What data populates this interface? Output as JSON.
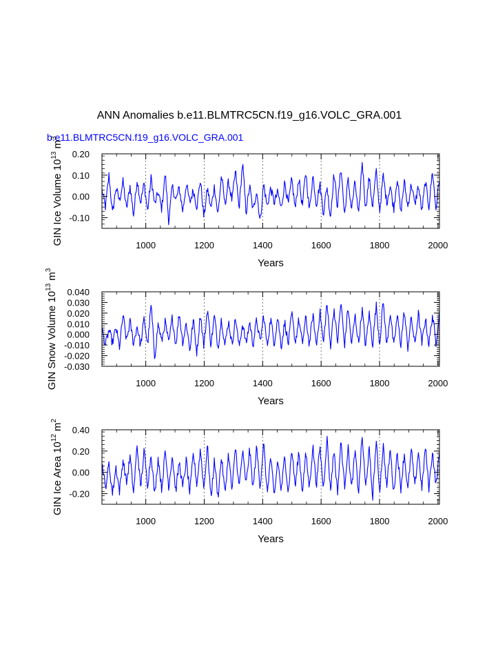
{
  "title": "ANN Anomalies b.e11.BLMTRC5CN.f19_g16.VOLC_GRA.001",
  "subtitle": "b.e11.BLMTRC5CN.f19_g16.VOLC_GRA.001",
  "colors": {
    "series": "#0000ff",
    "axis": "#000000",
    "grid": "#555555",
    "subtitle": "#0000ff"
  },
  "chart_data": [
    {
      "type": "line",
      "name": "GIN Ice Volume",
      "ylabel_main": "GIN Ice Volume 10",
      "ylabel_exp": "13",
      "ylabel_unit": "m",
      "ylabel_unit_exp": "3",
      "xlabel": "Years",
      "xlim": [
        850,
        2005
      ],
      "ylim": [
        -0.15,
        0.2
      ],
      "xticks": [
        1000,
        1200,
        1400,
        1600,
        1800,
        2000
      ],
      "xtick_labels": [
        "1000",
        "1200",
        "1400",
        "1600",
        "1800",
        "2000"
      ],
      "yticks": [
        -0.1,
        0.0,
        0.1,
        0.2
      ],
      "ytick_labels": [
        "-0.10",
        "0.00",
        "0.10",
        "0.20"
      ],
      "x_grid": "dashed at major ticks",
      "series": [
        {
          "name": "GIN Ice Volume anomaly",
          "x_start": 850,
          "x_end": 2005,
          "y_samples": [
            0.03,
            -0.05,
            0.1,
            -0.08,
            0.04,
            -0.02,
            0.07,
            -0.06,
            0.05,
            -0.09,
            0.08,
            -0.03,
            0.06,
            -0.07,
            0.09,
            -0.04,
            0.02,
            -0.06,
            0.11,
            -0.12,
            0.05,
            -0.02,
            0.04,
            -0.07,
            0.06,
            -0.03,
            0.03,
            -0.05,
            0.08,
            -0.1,
            0.04,
            -0.06,
            0.05,
            -0.09,
            0.1,
            -0.04,
            0.07,
            -0.02,
            0.12,
            -0.06,
            0.16,
            -0.08,
            0.05,
            -0.07,
            0.03,
            -0.12,
            0.06,
            -0.05,
            0.04,
            -0.03,
            0.02,
            -0.06,
            0.07,
            -0.04,
            0.08,
            -0.06,
            0.09,
            -0.05,
            0.12,
            -0.07,
            0.1,
            -0.04,
            0.06,
            -0.08,
            0.05,
            -0.1,
            0.11,
            -0.05,
            0.14,
            -0.09,
            0.08,
            -0.06,
            0.07,
            -0.1,
            0.17,
            -0.06,
            0.09,
            -0.05,
            0.12,
            -0.07,
            0.1,
            -0.03,
            0.05,
            -0.06,
            0.09,
            -0.08,
            0.07,
            -0.05,
            0.06,
            -0.04,
            0.05,
            -0.07,
            0.07,
            -0.05,
            0.12,
            -0.06,
            0.09
          ]
        }
      ],
      "annotations": []
    },
    {
      "type": "line",
      "name": "GIN Snow Volume",
      "ylabel_main": "GIN Snow Volume 10",
      "ylabel_exp": "13",
      "ylabel_unit": "m",
      "ylabel_unit_exp": "3",
      "xlabel": "Years",
      "xlim": [
        850,
        2005
      ],
      "ylim": [
        -0.03,
        0.04
      ],
      "xticks": [
        1000,
        1200,
        1400,
        1600,
        1800,
        2000
      ],
      "xtick_labels": [
        "1000",
        "1200",
        "1400",
        "1600",
        "1800",
        "2000"
      ],
      "yticks": [
        -0.03,
        -0.02,
        -0.01,
        0.0,
        0.01,
        0.02,
        0.03,
        0.04
      ],
      "ytick_labels": [
        "-0.030",
        "-0.020",
        "-0.010",
        "0.000",
        "0.010",
        "0.020",
        "0.030",
        "0.040"
      ],
      "x_grid": "dashed at major ticks",
      "series": [
        {
          "name": "GIN Snow Volume anomaly",
          "x_start": 850,
          "x_end": 2005,
          "y_samples": [
            0.005,
            -0.01,
            0.004,
            -0.008,
            0.006,
            -0.012,
            0.018,
            -0.006,
            0.012,
            -0.009,
            0.008,
            -0.011,
            0.015,
            -0.01,
            0.028,
            -0.022,
            0.01,
            -0.007,
            0.012,
            -0.009,
            0.016,
            -0.01,
            0.02,
            -0.008,
            0.011,
            -0.015,
            0.014,
            -0.018,
            0.02,
            -0.012,
            0.025,
            -0.01,
            0.018,
            -0.013,
            0.015,
            -0.011,
            0.013,
            -0.01,
            0.016,
            -0.012,
            0.01,
            -0.009,
            0.012,
            -0.01,
            0.014,
            -0.008,
            0.018,
            -0.011,
            0.015,
            -0.009,
            0.017,
            -0.012,
            0.012,
            -0.01,
            0.02,
            -0.008,
            0.014,
            -0.009,
            0.016,
            -0.01,
            0.019,
            -0.011,
            0.022,
            -0.009,
            0.03,
            -0.012,
            0.025,
            -0.008,
            0.031,
            -0.011,
            0.026,
            -0.01,
            0.018,
            -0.009,
            0.024,
            -0.012,
            0.02,
            -0.01,
            0.028,
            -0.009,
            0.032,
            -0.011,
            0.021,
            -0.012,
            0.018,
            -0.01,
            0.022,
            -0.013,
            0.016,
            -0.01,
            0.02,
            -0.009,
            0.015,
            -0.01,
            0.018,
            -0.008,
            0.02
          ]
        }
      ],
      "annotations": []
    },
    {
      "type": "line",
      "name": "GIN Ice Area",
      "ylabel_main": "GIN Ice Area 10",
      "ylabel_exp": "12",
      "ylabel_unit": "m",
      "ylabel_unit_exp": "2",
      "xlabel": "Years",
      "xlim": [
        850,
        2005
      ],
      "ylim": [
        -0.3,
        0.4
      ],
      "xticks": [
        1000,
        1200,
        1400,
        1600,
        1800,
        2000
      ],
      "xtick_labels": [
        "1000",
        "1200",
        "1400",
        "1600",
        "1800",
        "2000"
      ],
      "yticks": [
        -0.2,
        0.0,
        0.2,
        0.4
      ],
      "ytick_labels": [
        "-0.20",
        "0.00",
        "0.20",
        "0.40"
      ],
      "x_grid": "dashed at major ticks",
      "series": [
        {
          "name": "GIN Ice Area anomaly",
          "x_start": 850,
          "x_end": 2005,
          "y_samples": [
            0.1,
            -0.15,
            0.08,
            -0.2,
            0.05,
            -0.18,
            0.12,
            -0.1,
            0.15,
            -0.2,
            0.26,
            -0.15,
            0.2,
            -0.12,
            0.18,
            -0.22,
            0.14,
            -0.16,
            0.2,
            -0.14,
            0.16,
            -0.18,
            0.1,
            -0.15,
            0.12,
            -0.2,
            0.18,
            -0.12,
            0.22,
            -0.16,
            0.26,
            -0.25,
            0.12,
            -0.24,
            0.15,
            -0.2,
            0.18,
            -0.18,
            0.25,
            -0.15,
            0.2,
            -0.12,
            0.22,
            -0.16,
            0.24,
            -0.14,
            0.28,
            -0.2,
            0.15,
            -0.24,
            0.12,
            -0.18,
            0.16,
            -0.2,
            0.22,
            -0.14,
            0.2,
            -0.18,
            0.18,
            -0.15,
            0.25,
            -0.12,
            0.24,
            -0.16,
            0.34,
            -0.18,
            0.22,
            -0.2,
            0.3,
            -0.14,
            0.24,
            -0.16,
            0.2,
            -0.2,
            0.35,
            -0.15,
            0.22,
            -0.24,
            0.3,
            -0.18,
            0.26,
            -0.14,
            0.22,
            -0.2,
            0.2,
            -0.16,
            0.18,
            -0.18,
            0.22,
            -0.14,
            0.2,
            -0.16,
            0.24,
            -0.15,
            0.2,
            -0.12,
            0.18
          ]
        }
      ],
      "annotations": []
    }
  ]
}
